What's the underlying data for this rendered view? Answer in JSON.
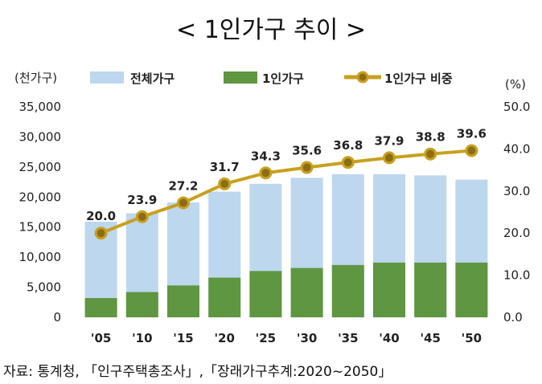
{
  "chart_data": {
    "type": "bar+line",
    "title": "< 1인가구 추이 >",
    "categories": [
      "'05",
      "'10",
      "'15",
      "'20",
      "'25",
      "'30",
      "'35",
      "'40",
      "'45",
      "'50"
    ],
    "series": [
      {
        "name": "전체가구",
        "type": "bar",
        "axis": "left",
        "color": "#BDD7EE",
        "values": [
          15900,
          17300,
          19100,
          20900,
          22200,
          23200,
          23800,
          23800,
          23600,
          22900
        ]
      },
      {
        "name": "1인가구",
        "type": "bar",
        "axis": "left",
        "color": "#5F9641",
        "values": [
          3200,
          4200,
          5300,
          6600,
          7700,
          8200,
          8700,
          9100,
          9100,
          9100
        ]
      },
      {
        "name": "1인가구 비중",
        "type": "line",
        "axis": "right",
        "color": "#C8A01E",
        "values": [
          20.0,
          23.9,
          27.2,
          31.7,
          34.3,
          35.6,
          36.8,
          37.9,
          38.8,
          39.6
        ],
        "labels": [
          "20.0",
          "23.9",
          "27.2",
          "31.7",
          "34.3",
          "35.6",
          "36.8",
          "37.9",
          "38.8",
          "39.6"
        ]
      }
    ],
    "yleft": {
      "label": "(천가구)",
      "lim": [
        0,
        35000
      ],
      "ticks": [
        0,
        5000,
        10000,
        15000,
        20000,
        25000,
        30000,
        35000
      ],
      "tick_labels": [
        "0",
        "5,000",
        "10,000",
        "15,000",
        "20,000",
        "25,000",
        "30,000",
        "35,000"
      ]
    },
    "yright": {
      "label": "(%)",
      "lim": [
        0,
        50
      ],
      "ticks": [
        0,
        10,
        20,
        30,
        40,
        50
      ],
      "tick_labels": [
        "0.0",
        "10.0",
        "20.0",
        "30.0",
        "40.0",
        "50.0"
      ]
    },
    "legend": {
      "position": "top"
    },
    "grid": false
  },
  "source": "자료: 통계청, 「인구주택총조사」,「장래가구추계:2020∼2050」"
}
